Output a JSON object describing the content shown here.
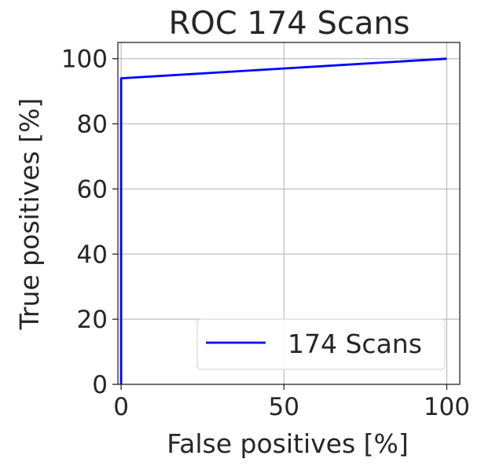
{
  "chart_data": {
    "type": "line",
    "title": "ROC 174 Scans",
    "xlabel": "False positives [%]",
    "ylabel": "True positives [%]",
    "xlim": [
      -1,
      104
    ],
    "ylim": [
      0,
      105
    ],
    "xticks": [
      0,
      50,
      100
    ],
    "yticks": [
      0,
      20,
      40,
      60,
      80,
      100
    ],
    "grid": true,
    "legend_position": "lower-right",
    "series": [
      {
        "name": "174 Scans",
        "color": "#0000ff",
        "x": [
          0,
          0,
          100
        ],
        "y": [
          0,
          94,
          100
        ]
      }
    ]
  }
}
